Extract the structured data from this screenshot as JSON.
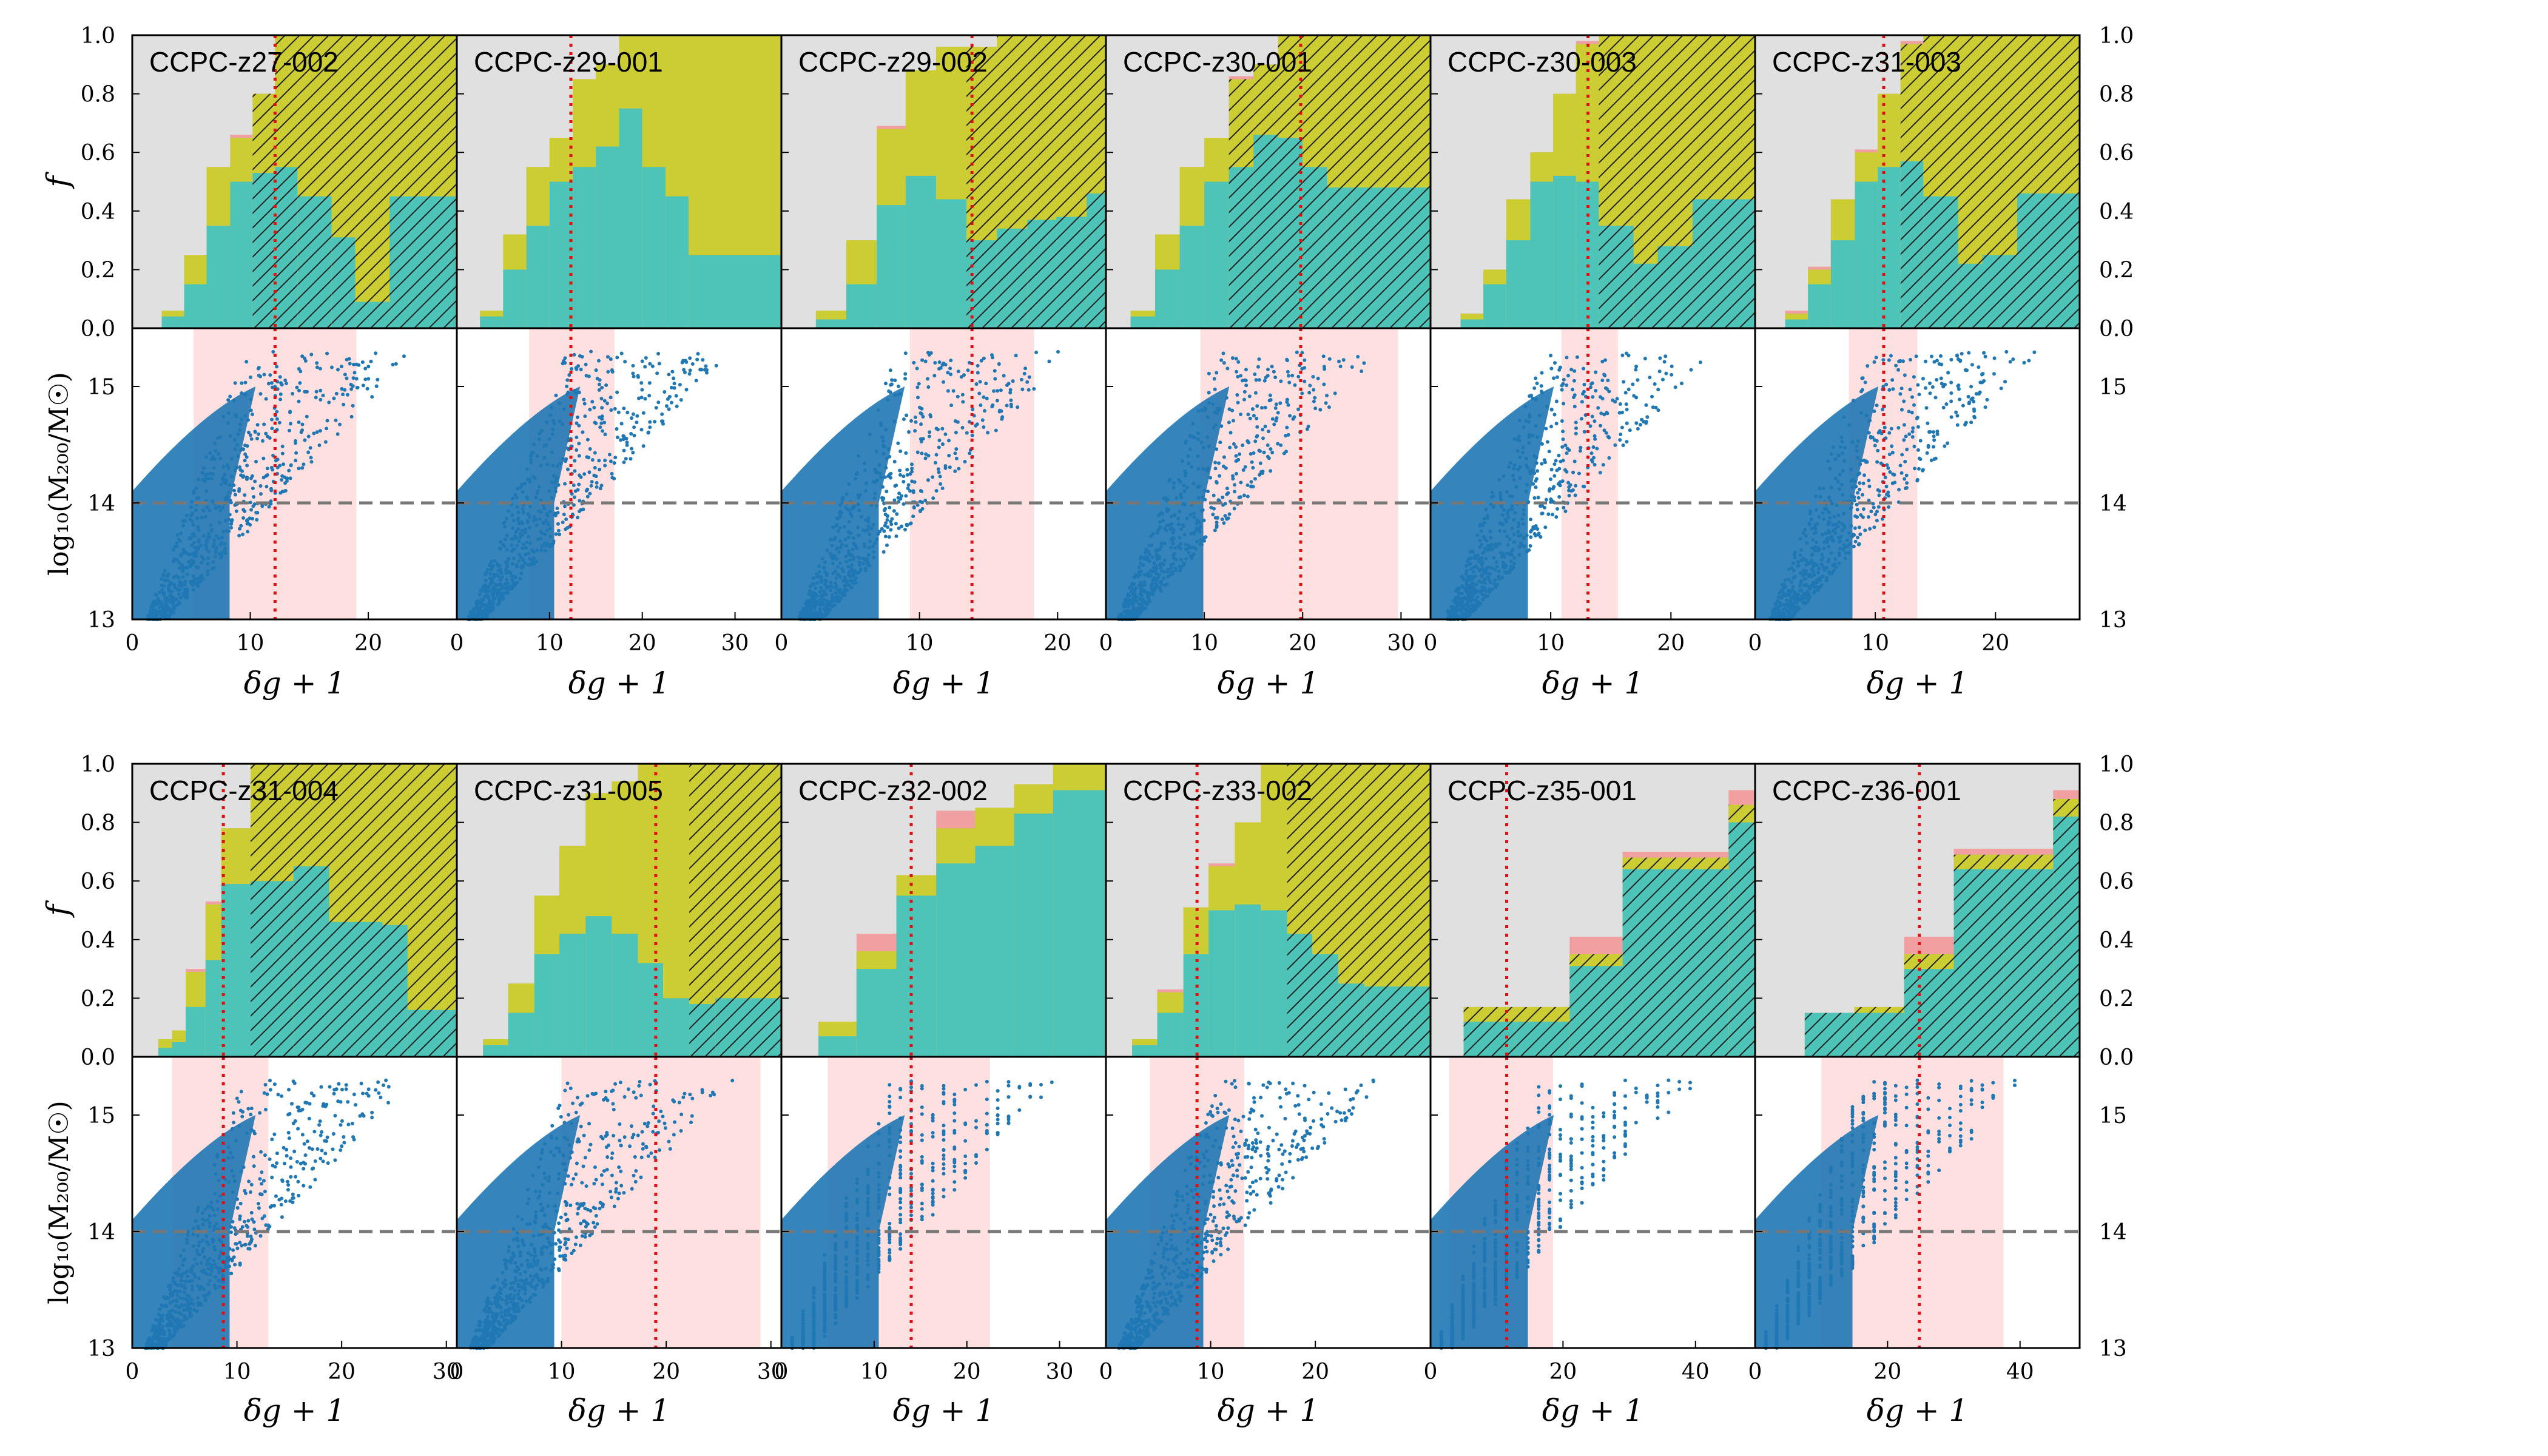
{
  "figure": {
    "y_label_fraction": "f",
    "y_label_mass": "log₁₀(M₂₀₀/M☉)",
    "x_label": "δg + 1",
    "colors": {
      "grey_fill": "#e0e0e0",
      "yellow_fill": "#cccc33",
      "teal_fill": "#4ec3b8",
      "pink_fill": "#f0a0a0",
      "scatter": "#1f77b4",
      "shade": "#ffe0e0",
      "median_line": "#e01010",
      "dashed_line": "#777777"
    },
    "fraction_ticks": [
      "0.0",
      "0.2",
      "0.4",
      "0.6",
      "0.8",
      "1.0"
    ],
    "fraction_tick_values": [
      0,
      0.2,
      0.4,
      0.6,
      0.8,
      1.0
    ],
    "mass_ticks": [
      "13",
      "14",
      "15"
    ],
    "mass_tick_values": [
      13,
      14,
      15
    ],
    "mass_ylim": [
      13,
      15.5
    ],
    "mass_threshold": 14
  },
  "chart_data": [
    {
      "name": "CCPC-z27-002",
      "type": "bar",
      "xlim": [
        0,
        27.5
      ],
      "x_ticks": [
        0,
        10,
        20
      ],
      "x_tick_labels": [
        "0",
        "10",
        "20"
      ],
      "bin_edges": [
        2.5,
        4.4,
        6.3,
        8.3,
        10.2,
        12.1,
        14.0,
        16.9,
        18.9,
        21.8,
        27.5
      ],
      "teal": [
        0.04,
        0.15,
        0.35,
        0.5,
        0.53,
        0.55,
        0.45,
        0.31,
        0.09,
        0.45
      ],
      "yellow": [
        0.06,
        0.25,
        0.55,
        0.65,
        0.8,
        1.0,
        1.0,
        1.0,
        1.0,
        1.0
      ],
      "pink": [
        0.06,
        0.25,
        0.55,
        0.66,
        0.8,
        1.0,
        1.0,
        1.0,
        1.0,
        1.0
      ],
      "hatch": [
        false,
        false,
        false,
        false,
        true,
        true,
        true,
        true,
        true,
        true
      ],
      "median": 12.1,
      "shade": [
        5.2,
        19.0
      ]
    },
    {
      "name": "CCPC-z29-001",
      "type": "bar",
      "xlim": [
        0,
        35
      ],
      "x_ticks": [
        0,
        10,
        20,
        30
      ],
      "x_tick_labels": [
        "0",
        "10",
        "20",
        "30"
      ],
      "bin_edges": [
        2.5,
        5.0,
        7.5,
        10.0,
        12.5,
        15.0,
        17.5,
        20.0,
        22.5,
        25.0,
        35.0
      ],
      "teal": [
        0.04,
        0.2,
        0.35,
        0.5,
        0.55,
        0.62,
        0.75,
        0.55,
        0.45,
        0.25
      ],
      "yellow": [
        0.06,
        0.32,
        0.55,
        0.65,
        0.85,
        0.9,
        1.0,
        1.0,
        1.0,
        1.0
      ],
      "pink": [
        0.06,
        0.32,
        0.55,
        0.65,
        0.85,
        0.9,
        1.0,
        1.0,
        1.0,
        1.0
      ],
      "hatch": [
        false,
        false,
        false,
        false,
        false,
        false,
        false,
        false,
        false,
        false
      ],
      "median": 12.3,
      "shade": [
        7.8,
        17.0
      ]
    },
    {
      "name": "CCPC-z29-002",
      "type": "bar",
      "xlim": [
        0,
        23.5
      ],
      "x_ticks": [
        0,
        10,
        20
      ],
      "x_tick_labels": [
        "0",
        "10",
        "20"
      ],
      "bin_edges": [
        2.5,
        4.7,
        6.9,
        9.0,
        11.2,
        13.4,
        15.6,
        17.8,
        19.9,
        22.1,
        23.5
      ],
      "teal": [
        0.03,
        0.15,
        0.42,
        0.52,
        0.44,
        0.3,
        0.34,
        0.37,
        0.38,
        0.46
      ],
      "yellow": [
        0.06,
        0.3,
        0.68,
        0.88,
        0.96,
        0.96,
        1.0,
        1.0,
        1.0,
        1.0
      ],
      "pink": [
        0.06,
        0.3,
        0.69,
        0.88,
        0.96,
        0.96,
        1.0,
        1.0,
        1.0,
        1.0
      ],
      "hatch": [
        false,
        false,
        false,
        false,
        false,
        true,
        true,
        true,
        true,
        true
      ],
      "median": 13.8,
      "shade": [
        9.3,
        18.3
      ]
    },
    {
      "name": "CCPC-z30-001",
      "type": "bar",
      "xlim": [
        0,
        33
      ],
      "x_ticks": [
        0,
        10,
        20,
        30
      ],
      "x_tick_labels": [
        "0",
        "10",
        "20",
        "30"
      ],
      "bin_edges": [
        2.5,
        5.0,
        7.5,
        10.0,
        12.5,
        15.0,
        17.5,
        20.0,
        22.5,
        25.0,
        33.0
      ],
      "teal": [
        0.04,
        0.2,
        0.35,
        0.5,
        0.55,
        0.66,
        0.65,
        0.55,
        0.48,
        0.48
      ],
      "yellow": [
        0.06,
        0.32,
        0.55,
        0.65,
        0.85,
        0.9,
        1.0,
        1.0,
        1.0,
        1.0
      ],
      "pink": [
        0.06,
        0.32,
        0.55,
        0.65,
        0.86,
        0.9,
        1.0,
        1.0,
        1.0,
        1.0
      ],
      "hatch": [
        false,
        false,
        false,
        false,
        true,
        true,
        true,
        true,
        true,
        true
      ],
      "median": 19.8,
      "shade": [
        9.6,
        29.7
      ]
    },
    {
      "name": "CCPC-z30-003",
      "type": "bar",
      "xlim": [
        0,
        27
      ],
      "x_ticks": [
        0,
        10,
        20
      ],
      "x_tick_labels": [
        "0",
        "10",
        "20"
      ],
      "bin_edges": [
        2.5,
        4.4,
        6.3,
        8.3,
        10.2,
        12.1,
        14.0,
        16.9,
        18.9,
        21.8,
        27.0
      ],
      "teal": [
        0.03,
        0.15,
        0.3,
        0.5,
        0.52,
        0.5,
        0.35,
        0.22,
        0.28,
        0.44
      ],
      "yellow": [
        0.05,
        0.2,
        0.44,
        0.6,
        0.8,
        0.97,
        1.0,
        1.0,
        1.0,
        1.0
      ],
      "pink": [
        0.05,
        0.2,
        0.44,
        0.6,
        0.8,
        0.98,
        1.0,
        1.0,
        1.0,
        1.0
      ],
      "hatch": [
        false,
        false,
        false,
        false,
        false,
        false,
        true,
        true,
        true,
        true
      ],
      "median": 13.1,
      "shade": [
        10.9,
        15.6
      ]
    },
    {
      "name": "CCPC-z31-003",
      "type": "bar",
      "xlim": [
        0,
        27
      ],
      "x_ticks": [
        0,
        10,
        20
      ],
      "x_tick_labels": [
        "0",
        "10",
        "20"
      ],
      "bin_edges": [
        2.5,
        4.4,
        6.3,
        8.3,
        10.2,
        12.1,
        14.0,
        16.9,
        18.9,
        21.8,
        27.0
      ],
      "teal": [
        0.03,
        0.15,
        0.3,
        0.5,
        0.55,
        0.57,
        0.45,
        0.22,
        0.25,
        0.46
      ],
      "yellow": [
        0.05,
        0.2,
        0.44,
        0.6,
        0.8,
        0.97,
        1.0,
        1.0,
        1.0,
        1.0
      ],
      "pink": [
        0.06,
        0.21,
        0.44,
        0.61,
        0.8,
        0.98,
        1.0,
        1.0,
        1.0,
        1.0
      ],
      "hatch": [
        false,
        false,
        false,
        false,
        false,
        true,
        true,
        true,
        true,
        true
      ],
      "median": 10.7,
      "shade": [
        7.8,
        13.5
      ]
    },
    {
      "name": "CCPC-z31-004",
      "type": "bar",
      "xlim": [
        0,
        31
      ],
      "x_ticks": [
        0,
        10,
        20,
        30
      ],
      "x_tick_labels": [
        "0",
        "10",
        "20",
        "30"
      ],
      "bin_edges": [
        2.5,
        3.8,
        5.1,
        7.0,
        8.5,
        11.3,
        15.4,
        18.8,
        23.9,
        26.3,
        31.0
      ],
      "teal": [
        0.03,
        0.05,
        0.17,
        0.33,
        0.59,
        0.6,
        0.65,
        0.46,
        0.45,
        0.16
      ],
      "yellow": [
        0.06,
        0.09,
        0.29,
        0.52,
        0.78,
        1.0,
        1.0,
        1.0,
        1.0,
        1.0
      ],
      "pink": [
        0.06,
        0.09,
        0.3,
        0.53,
        0.78,
        1.0,
        1.0,
        1.0,
        1.0,
        1.0
      ],
      "hatch": [
        false,
        false,
        false,
        false,
        false,
        true,
        true,
        true,
        true,
        true
      ],
      "median": 8.7,
      "shade": [
        3.8,
        13.0
      ]
    },
    {
      "name": "CCPC-z31-005",
      "type": "bar",
      "xlim": [
        0,
        31
      ],
      "x_ticks": [
        0,
        10,
        20,
        30
      ],
      "x_tick_labels": [
        "0",
        "10",
        "20",
        "30"
      ],
      "bin_edges": [
        2.5,
        4.9,
        7.4,
        9.8,
        12.3,
        14.8,
        17.3,
        19.7,
        22.2,
        24.7,
        31.0
      ],
      "teal": [
        0.04,
        0.15,
        0.35,
        0.42,
        0.48,
        0.42,
        0.32,
        0.2,
        0.18,
        0.2
      ],
      "yellow": [
        0.06,
        0.25,
        0.55,
        0.72,
        0.9,
        0.94,
        1.0,
        1.0,
        1.0,
        1.0
      ],
      "pink": [
        0.06,
        0.25,
        0.55,
        0.72,
        0.9,
        0.94,
        1.0,
        1.0,
        1.0,
        1.0
      ],
      "hatch": [
        false,
        false,
        false,
        false,
        false,
        false,
        false,
        false,
        true,
        true
      ],
      "median": 19.0,
      "shade": [
        10.0,
        29.0
      ]
    },
    {
      "name": "CCPC-z32-002",
      "type": "bar",
      "xlim": [
        0,
        35
      ],
      "x_ticks": [
        0,
        10,
        20,
        30
      ],
      "x_tick_labels": [
        "0",
        "10",
        "20",
        "30"
      ],
      "bin_edges": [
        4.0,
        8.1,
        12.4,
        16.7,
        20.9,
        25.1,
        29.3,
        34.9
      ],
      "teal": [
        0.07,
        0.3,
        0.55,
        0.66,
        0.72,
        0.83,
        0.91
      ],
      "yellow": [
        0.12,
        0.36,
        0.62,
        0.78,
        0.85,
        0.93,
        1.0
      ],
      "pink": [
        0.12,
        0.42,
        0.62,
        0.84,
        0.85,
        0.93,
        1.0
      ],
      "hatch": [
        false,
        false,
        false,
        false,
        false,
        false,
        false
      ],
      "median": 14.0,
      "shade": [
        5.0,
        22.5
      ]
    },
    {
      "name": "CCPC-z33-002",
      "type": "bar",
      "xlim": [
        0,
        31
      ],
      "x_ticks": [
        0,
        10,
        20
      ],
      "x_tick_labels": [
        "0",
        "10",
        "20"
      ],
      "bin_edges": [
        2.5,
        4.9,
        7.4,
        9.8,
        12.3,
        14.8,
        17.3,
        19.7,
        22.2,
        24.7,
        31.0
      ],
      "teal": [
        0.04,
        0.15,
        0.35,
        0.5,
        0.52,
        0.5,
        0.42,
        0.35,
        0.25,
        0.24
      ],
      "yellow": [
        0.06,
        0.22,
        0.51,
        0.65,
        0.8,
        1.0,
        1.0,
        1.0,
        1.0,
        1.0
      ],
      "pink": [
        0.06,
        0.23,
        0.51,
        0.66,
        0.8,
        1.0,
        1.0,
        1.0,
        1.0,
        1.0
      ],
      "hatch": [
        false,
        false,
        false,
        false,
        false,
        false,
        true,
        true,
        true,
        true
      ],
      "median": 8.7,
      "shade": [
        4.2,
        13.2
      ]
    },
    {
      "name": "CCPC-z35-001",
      "type": "bar",
      "xlim": [
        0,
        49
      ],
      "x_ticks": [
        0,
        20,
        40
      ],
      "x_tick_labels": [
        "0",
        "20",
        "40"
      ],
      "bin_edges": [
        5.0,
        13.0,
        21.0,
        29.0,
        37.0,
        45.0,
        49.0
      ],
      "teal": [
        0.12,
        0.12,
        0.31,
        0.64,
        0.64,
        0.8
      ],
      "yellow": [
        0.17,
        0.17,
        0.35,
        0.68,
        0.68,
        0.86
      ],
      "pink": [
        0.17,
        0.17,
        0.41,
        0.7,
        0.7,
        0.91
      ],
      "hatch": [
        true,
        true,
        true,
        true,
        true,
        true
      ],
      "median": 11.5,
      "shade": [
        2.8,
        18.5
      ]
    },
    {
      "name": "CCPC-z36-001",
      "type": "bar",
      "xlim": [
        0,
        49
      ],
      "x_ticks": [
        0,
        20,
        40
      ],
      "x_tick_labels": [
        "0",
        "20",
        "40"
      ],
      "bin_edges": [
        7.5,
        15.0,
        22.5,
        30.0,
        37.5,
        45.0,
        49.0
      ],
      "teal": [
        0.15,
        0.15,
        0.3,
        0.64,
        0.64,
        0.82
      ],
      "yellow": [
        0.15,
        0.17,
        0.35,
        0.69,
        0.69,
        0.88
      ],
      "pink": [
        0.15,
        0.17,
        0.41,
        0.71,
        0.71,
        0.91
      ],
      "hatch": [
        true,
        true,
        true,
        true,
        true,
        true
      ],
      "median": 24.8,
      "shade": [
        10.0,
        37.5
      ]
    }
  ]
}
